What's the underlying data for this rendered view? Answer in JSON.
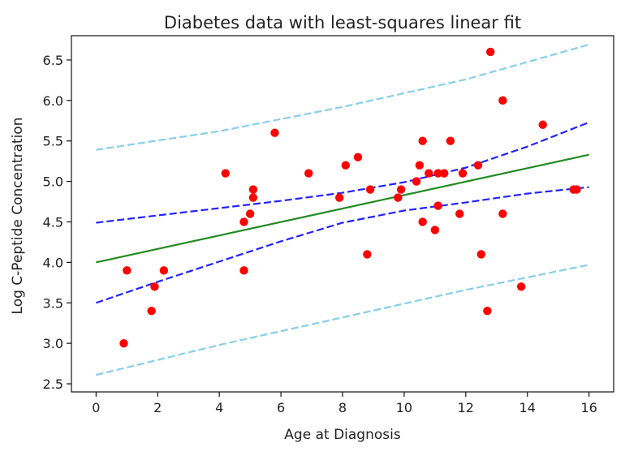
{
  "chart_data": {
    "type": "scatter",
    "title": "Diabetes data with least-squares linear fit",
    "xlabel": "Age at Diagnosis",
    "ylabel": "Log C-Peptide Concentration",
    "xlim": [
      -0.8,
      16.8
    ],
    "ylim": [
      2.4,
      6.8
    ],
    "xticks": [
      0,
      2,
      4,
      6,
      8,
      10,
      12,
      14,
      16
    ],
    "xtick_labels": [
      "0",
      "2",
      "4",
      "6",
      "8",
      "10",
      "12",
      "14",
      "16"
    ],
    "yticks": [
      2.5,
      3.0,
      3.5,
      4.0,
      4.5,
      5.0,
      5.5,
      6.0,
      6.5
    ],
    "ytick_labels": [
      "2.5",
      "3.0",
      "3.5",
      "4.0",
      "4.5",
      "5.0",
      "5.5",
      "6.0",
      "6.5"
    ],
    "grid": false,
    "series": [
      {
        "kind": "points",
        "color": "#ff0000",
        "x": [
          0.9,
          1.0,
          1.8,
          1.9,
          2.2,
          4.2,
          4.8,
          4.8,
          5.0,
          5.1,
          5.1,
          5.8,
          6.9,
          7.9,
          8.1,
          8.5,
          8.8,
          8.9,
          9.8,
          9.9,
          10.4,
          10.5,
          10.6,
          10.6,
          10.8,
          11.0,
          11.1,
          11.1,
          11.3,
          11.5,
          11.8,
          11.9,
          12.4,
          12.5,
          12.7,
          12.8,
          13.2,
          13.2,
          13.8,
          14.5,
          15.5,
          15.6
        ],
        "y": [
          3.0,
          3.9,
          3.4,
          3.7,
          3.9,
          5.1,
          3.9,
          4.5,
          4.6,
          4.8,
          4.9,
          5.6,
          5.1,
          4.8,
          5.2,
          5.3,
          4.1,
          4.9,
          4.8,
          4.9,
          5.0,
          5.2,
          4.5,
          5.5,
          5.1,
          4.4,
          4.7,
          5.1,
          5.1,
          5.5,
          4.6,
          5.1,
          5.2,
          4.1,
          3.4,
          6.6,
          6.0,
          4.6,
          3.7,
          5.7,
          4.9,
          4.9
        ]
      },
      {
        "kind": "line",
        "color": "#228b22",
        "dash": "solid",
        "x": [
          0,
          16
        ],
        "y": [
          4.0,
          5.33
        ]
      },
      {
        "kind": "line",
        "color": "#2222ff",
        "dash": "dashed",
        "x": [
          0,
          2,
          4,
          6,
          8,
          10,
          12,
          14,
          16
        ],
        "y": [
          4.49,
          4.58,
          4.67,
          4.76,
          4.86,
          4.99,
          5.17,
          5.43,
          5.73
        ]
      },
      {
        "kind": "line",
        "color": "#2222ff",
        "dash": "dashed",
        "x": [
          0,
          2,
          4,
          6,
          8,
          10,
          12,
          14,
          16
        ],
        "y": [
          3.5,
          3.76,
          4.01,
          4.26,
          4.49,
          4.64,
          4.74,
          4.85,
          4.93
        ]
      },
      {
        "kind": "line",
        "color": "#87ceeb",
        "dash": "dashed",
        "x": [
          0,
          4,
          8,
          12,
          16
        ],
        "y": [
          5.39,
          5.62,
          5.92,
          6.26,
          6.69
        ]
      },
      {
        "kind": "line",
        "color": "#87ceeb",
        "dash": "dashed",
        "x": [
          0,
          4,
          8,
          12,
          16
        ],
        "y": [
          2.61,
          2.98,
          3.32,
          3.66,
          3.97
        ]
      }
    ]
  }
}
